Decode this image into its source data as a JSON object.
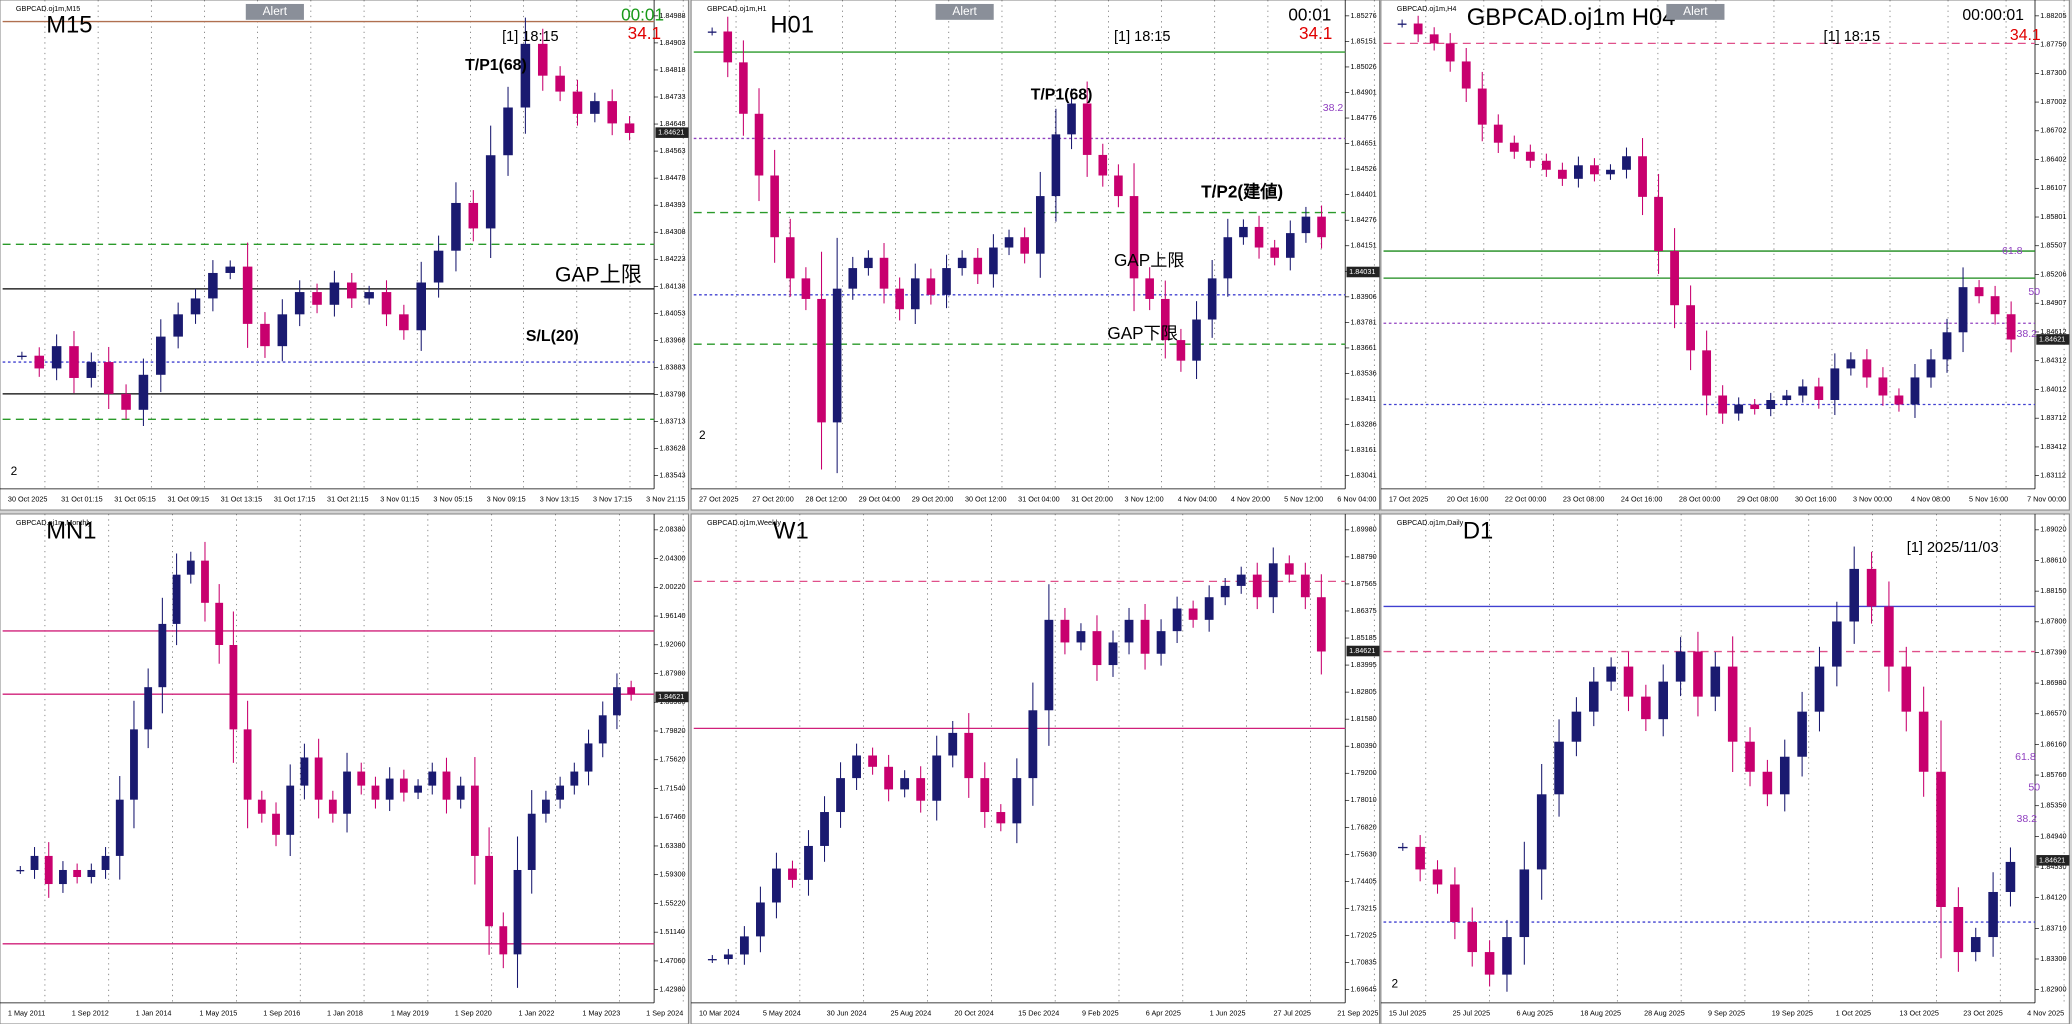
{
  "panels": [
    {
      "title": "M15",
      "symbol": "GBPCAD.oj1m,M15",
      "current": "1.84621",
      "annotations": [
        "Alert",
        "00:01",
        "34.1",
        "[1] 18:15",
        "T/P1(68)",
        "GAP上限",
        "S/L(20)",
        "2"
      ],
      "price_labels": [
        "1.84988",
        "1.84903",
        "1.84818",
        "1.84733",
        "1.84648",
        "1.84563",
        "1.84478",
        "1.84393",
        "1.84308",
        "1.84223",
        "1.84138",
        "1.84053",
        "1.83968",
        "1.83883",
        "1.83798",
        "1.83713",
        "1.83628",
        "1.83543"
      ],
      "time_labels": [
        "30 Oct 2025",
        "31 Oct 01:15",
        "31 Oct 05:15",
        "31 Oct 09:15",
        "31 Oct 13:15",
        "31 Oct 17:15",
        "31 Oct 21:15",
        "3 Nov 01:15",
        "3 Nov 05:15",
        "3 Nov 09:15",
        "3 Nov 13:15",
        "3 Nov 17:15",
        "3 Nov 21:15"
      ],
      "closes": [
        1.8392,
        1.8388,
        1.8395,
        1.8385,
        1.839,
        1.838,
        1.8375,
        1.8386,
        1.8398,
        1.8405,
        1.841,
        1.8418,
        1.842,
        1.8402,
        1.8395,
        1.8405,
        1.8412,
        1.8408,
        1.8415,
        1.841,
        1.8412,
        1.8405,
        1.84,
        1.8415,
        1.8425,
        1.844,
        1.8432,
        1.8455,
        1.847,
        1.849,
        1.848,
        1.8475,
        1.8468,
        1.8472,
        1.8465,
        1.8462
      ],
      "levels": [
        {
          "price": 1.8497,
          "color": "#b07050",
          "dash": "none"
        },
        {
          "price": 1.8427,
          "color": "#2a9a2a",
          "dash": "6 4"
        },
        {
          "price": 1.8372,
          "color": "#2a9a2a",
          "dash": "6 4"
        },
        {
          "price": 1.8413,
          "color": "#000000",
          "dash": "none"
        },
        {
          "price": 1.838,
          "color": "#000000",
          "dash": "none"
        },
        {
          "price": 1.839,
          "color": "#4040d0",
          "dash": "2 2"
        }
      ]
    },
    {
      "title": "H01",
      "symbol": "GBPCAD.oj1m,H1",
      "current": "1.84031",
      "annotations": [
        "Alert",
        "00:01",
        "34.1",
        "[1] 18:15",
        "T/P1(68)",
        "T/P2(建値)",
        "GAP上限",
        "GAP下限",
        "38.2",
        "2"
      ],
      "price_labels": [
        "1.85276",
        "1.85151",
        "1.85026",
        "1.84901",
        "1.84776",
        "1.84651",
        "1.84526",
        "1.84401",
        "1.84276",
        "1.84151",
        "1.84031",
        "1.83906",
        "1.83781",
        "1.83661",
        "1.83536",
        "1.83411",
        "1.83286",
        "1.83161",
        "1.83041"
      ],
      "time_labels": [
        "27 Oct 2025",
        "27 Oct 20:00",
        "28 Oct 12:00",
        "29 Oct 04:00",
        "29 Oct 20:00",
        "30 Oct 12:00",
        "31 Oct 04:00",
        "31 Oct 20:00",
        "3 Nov 12:00",
        "4 Nov 04:00",
        "4 Nov 20:00",
        "5 Nov 12:00",
        "6 Nov 04:00"
      ],
      "closes": [
        1.852,
        1.8505,
        1.848,
        1.845,
        1.842,
        1.84,
        1.839,
        1.833,
        1.8395,
        1.8405,
        1.841,
        1.8395,
        1.8385,
        1.84,
        1.8392,
        1.8405,
        1.841,
        1.8402,
        1.8415,
        1.842,
        1.8412,
        1.844,
        1.847,
        1.8485,
        1.846,
        1.845,
        1.844,
        1.84,
        1.839,
        1.837,
        1.836,
        1.838,
        1.84,
        1.842,
        1.8425,
        1.8415,
        1.841,
        1.8422,
        1.843,
        1.842
      ],
      "levels": [
        {
          "price": 1.851,
          "color": "#2a9a2a",
          "dash": "none"
        },
        {
          "price": 1.8468,
          "color": "#9040c0",
          "dash": "2 2"
        },
        {
          "price": 1.8432,
          "color": "#2a9a2a",
          "dash": "6 4"
        },
        {
          "price": 1.8392,
          "color": "#4040d0",
          "dash": "2 2"
        },
        {
          "price": 1.8368,
          "color": "#2a9a2a",
          "dash": "6 4"
        }
      ]
    },
    {
      "title": "GBPCAD.oj1m H04",
      "symbol": "GBPCAD.oj1m,H4",
      "current": "1.84621",
      "annotations": [
        "Alert",
        "00:00:01",
        "[1] 18:15",
        "34.1",
        "61.8",
        "50",
        "38.2"
      ],
      "price_labels": [
        "1.88205",
        "1.87750",
        "1.87300",
        "1.87002",
        "1.86702",
        "1.86402",
        "1.86107",
        "1.85801",
        "1.85507",
        "1.85206",
        "1.84907",
        "1.84612",
        "1.84312",
        "1.84012",
        "1.83712",
        "1.83412",
        "1.83112"
      ],
      "time_labels": [
        "17 Oct 2025",
        "20 Oct 16:00",
        "22 Oct 00:00",
        "23 Oct 08:00",
        "24 Oct 16:00",
        "28 Oct 00:00",
        "29 Oct 08:00",
        "30 Oct 16:00",
        "3 Nov 00:00",
        "4 Nov 08:00",
        "5 Nov 16:00",
        "7 Nov 00:00"
      ],
      "closes": [
        1.8812,
        1.88,
        1.879,
        1.877,
        1.874,
        1.87,
        1.868,
        1.867,
        1.866,
        1.865,
        1.864,
        1.8655,
        1.8645,
        1.865,
        1.8665,
        1.862,
        1.856,
        1.85,
        1.845,
        1.84,
        1.838,
        1.839,
        1.8385,
        1.8395,
        1.84,
        1.841,
        1.8395,
        1.843,
        1.844,
        1.842,
        1.84,
        1.839,
        1.842,
        1.844,
        1.847,
        1.852,
        1.851,
        1.849,
        1.8462
      ],
      "levels": [
        {
          "price": 1.879,
          "color": "#e0508a",
          "dash": "6 4"
        },
        {
          "price": 1.856,
          "color": "#1a8a1a",
          "dash": "none"
        },
        {
          "price": 1.853,
          "color": "#1a8a1a",
          "dash": "none"
        },
        {
          "price": 1.848,
          "color": "#9040c0",
          "dash": "2 2"
        },
        {
          "price": 1.839,
          "color": "#4040d0",
          "dash": "2 2"
        }
      ]
    },
    {
      "title": "MN1",
      "symbol": "GBPCAD.oj1m,Monthly",
      "current": "1.84621",
      "annotations": [],
      "price_labels": [
        "2.08380",
        "2.04300",
        "2.00220",
        "1.96140",
        "1.92060",
        "1.87980",
        "1.83900",
        "1.79820",
        "1.75620",
        "1.71540",
        "1.67460",
        "1.63380",
        "1.59300",
        "1.55220",
        "1.51140",
        "1.47060",
        "1.42980"
      ],
      "time_labels": [
        "1 May 2011",
        "1 Sep 2012",
        "1 Jan 2014",
        "1 May 2015",
        "1 Sep 2016",
        "1 Jan 2018",
        "1 May 2019",
        "1 Sep 2020",
        "1 Jan 2022",
        "1 May 2023",
        "1 Sep 2024"
      ],
      "closes": [
        1.6,
        1.62,
        1.58,
        1.6,
        1.59,
        1.6,
        1.62,
        1.7,
        1.8,
        1.86,
        1.95,
        2.02,
        2.04,
        1.98,
        1.92,
        1.8,
        1.7,
        1.68,
        1.65,
        1.72,
        1.76,
        1.7,
        1.68,
        1.74,
        1.72,
        1.7,
        1.73,
        1.71,
        1.72,
        1.74,
        1.7,
        1.72,
        1.62,
        1.52,
        1.48,
        1.6,
        1.68,
        1.7,
        1.72,
        1.74,
        1.78,
        1.82,
        1.86,
        1.85
      ],
      "levels": [
        {
          "price": 1.94,
          "color": "#d0207a",
          "dash": "none"
        },
        {
          "price": 1.85,
          "color": "#d0207a",
          "dash": "none"
        },
        {
          "price": 1.495,
          "color": "#d0207a",
          "dash": "none"
        }
      ]
    },
    {
      "title": "W1",
      "symbol": "GBPCAD.oj1m,Weekly",
      "current": "1.84621",
      "annotations": [],
      "price_labels": [
        "1.89980",
        "1.88790",
        "1.87565",
        "1.86375",
        "1.85185",
        "1.83995",
        "1.82805",
        "1.81580",
        "1.80390",
        "1.79200",
        "1.78010",
        "1.76820",
        "1.75630",
        "1.74405",
        "1.73215",
        "1.72025",
        "1.70835",
        "1.69645"
      ],
      "time_labels": [
        "10 Mar 2024",
        "5 May 2024",
        "30 Jun 2024",
        "25 Aug 2024",
        "20 Oct 2024",
        "15 Dec 2024",
        "9 Feb 2025",
        "6 Apr 2025",
        "1 Jun 2025",
        "27 Jul 2025",
        "21 Sep 2025"
      ],
      "closes": [
        1.71,
        1.712,
        1.72,
        1.735,
        1.75,
        1.745,
        1.76,
        1.775,
        1.79,
        1.8,
        1.795,
        1.785,
        1.79,
        1.78,
        1.8,
        1.81,
        1.79,
        1.775,
        1.77,
        1.79,
        1.82,
        1.86,
        1.85,
        1.855,
        1.84,
        1.85,
        1.86,
        1.845,
        1.855,
        1.865,
        1.86,
        1.87,
        1.875,
        1.88,
        1.87,
        1.885,
        1.88,
        1.87,
        1.846
      ],
      "levels": [
        {
          "price": 1.877,
          "color": "#e0508a",
          "dash": "6 4"
        },
        {
          "price": 1.812,
          "color": "#d0207a",
          "dash": "none"
        }
      ]
    },
    {
      "title": "D1",
      "symbol": "GBPCAD.oj1m,Daily",
      "current": "1.84621",
      "annotations": [
        "[1] 2025/11/03",
        "61.8",
        "50",
        "38.2",
        "2"
      ],
      "price_labels": [
        "1.89020",
        "1.88610",
        "1.88150",
        "1.87800",
        "1.87390",
        "1.86980",
        "1.86570",
        "1.86160",
        "1.85760",
        "1.85350",
        "1.84940",
        "1.84530",
        "1.84120",
        "1.83710",
        "1.83300",
        "1.82900"
      ],
      "time_labels": [
        "15 Jul 2025",
        "25 Jul 2025",
        "6 Aug 2025",
        "18 Aug 2025",
        "28 Aug 2025",
        "9 Sep 2025",
        "19 Sep 2025",
        "1 Oct 2025",
        "13 Oct 2025",
        "23 Oct 2025",
        "4 Nov 2025"
      ],
      "closes": [
        1.848,
        1.845,
        1.843,
        1.838,
        1.834,
        1.831,
        1.836,
        1.845,
        1.855,
        1.862,
        1.866,
        1.87,
        1.872,
        1.868,
        1.865,
        1.87,
        1.874,
        1.868,
        1.872,
        1.862,
        1.858,
        1.855,
        1.86,
        1.866,
        1.872,
        1.878,
        1.885,
        1.88,
        1.872,
        1.866,
        1.858,
        1.84,
        1.834,
        1.836,
        1.842,
        1.846
      ],
      "levels": [
        {
          "price": 1.88,
          "color": "#4040d0",
          "dash": "none"
        },
        {
          "price": 1.874,
          "color": "#e0508a",
          "dash": "6 4"
        },
        {
          "price": 1.838,
          "color": "#4040d0",
          "dash": "2 2"
        }
      ]
    }
  ]
}
